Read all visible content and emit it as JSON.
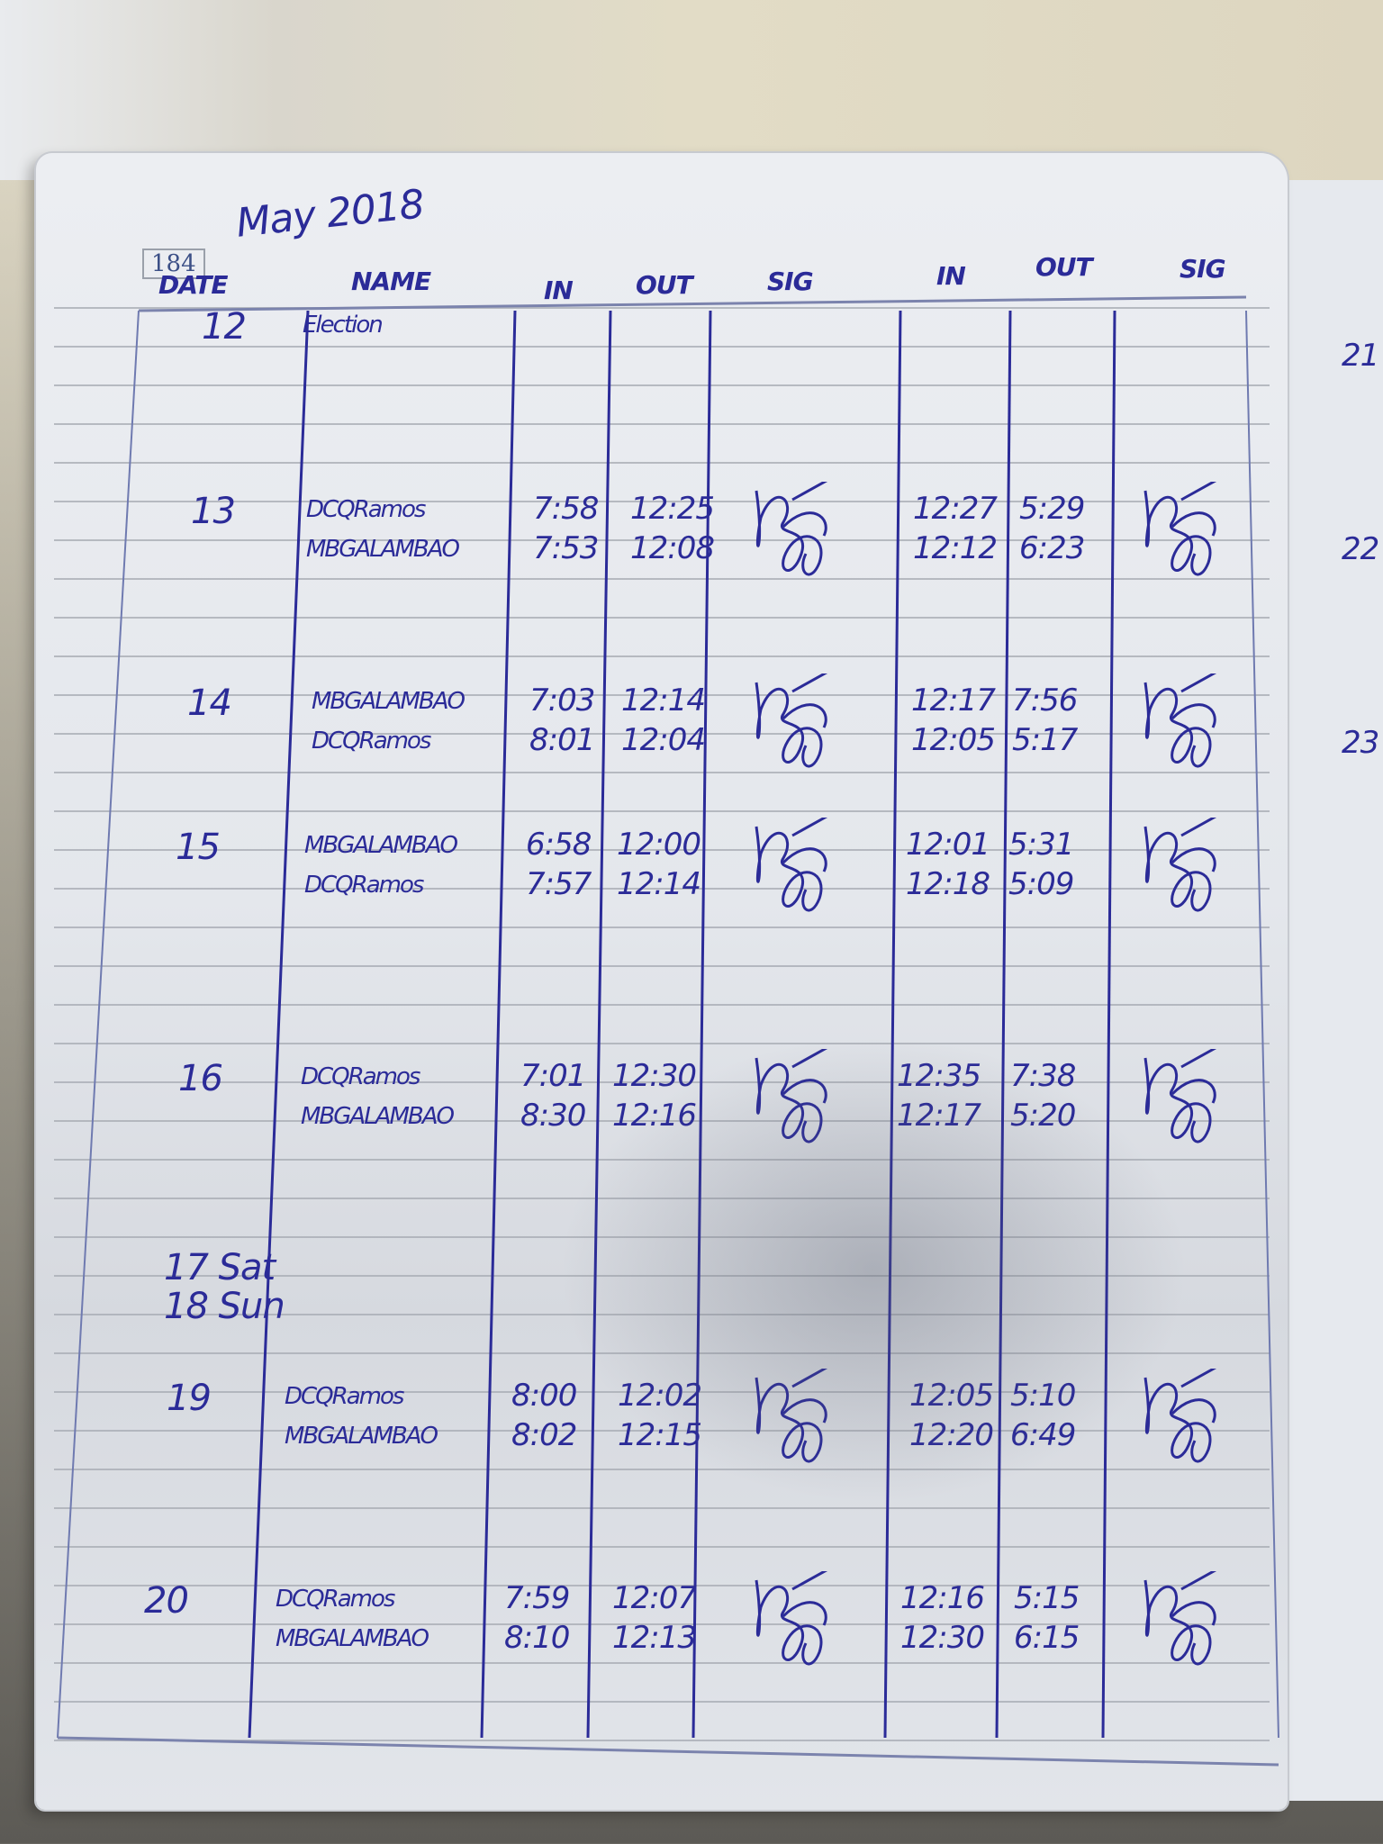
{
  "page": {
    "title": "May 2018",
    "page_number": "184",
    "ink_color": "#2b2b98",
    "headers": [
      "DATE",
      "NAME",
      "IN",
      "OUT",
      "SIG",
      "IN",
      "OUT",
      "SIG"
    ]
  },
  "rows": [
    {
      "date": "12",
      "names": [
        "Election"
      ],
      "in_am": [],
      "out_am": [],
      "in_pm": [],
      "out_pm": [],
      "signed": false
    },
    {
      "date": "13",
      "names": [
        "DCQRamos",
        "MBGALAMBAO"
      ],
      "in_am": [
        "7:58",
        "7:53"
      ],
      "out_am": [
        "12:25",
        "12:08"
      ],
      "in_pm": [
        "12:27",
        "12:12"
      ],
      "out_pm": [
        "5:29",
        "6:23"
      ],
      "signed": true
    },
    {
      "date": "14",
      "names": [
        "MBGALAMBAO",
        "DCQRamos"
      ],
      "in_am": [
        "7:03",
        "8:01"
      ],
      "out_am": [
        "12:14",
        "12:04"
      ],
      "in_pm": [
        "12:17",
        "12:05"
      ],
      "out_pm": [
        "7:56",
        "5:17"
      ],
      "signed": true
    },
    {
      "date": "15",
      "names": [
        "MBGALAMBAO",
        "DCQRamos"
      ],
      "in_am": [
        "6:58",
        "7:57"
      ],
      "out_am": [
        "12:00",
        "12:14"
      ],
      "in_pm": [
        "12:01",
        "12:18"
      ],
      "out_pm": [
        "5:31",
        "5:09"
      ],
      "signed": true
    },
    {
      "date": "16",
      "names": [
        "DCQRamos",
        "MBGALAMBAO"
      ],
      "in_am": [
        "7:01",
        "8:30"
      ],
      "out_am": [
        "12:30",
        "12:16"
      ],
      "in_pm": [
        "12:35",
        "12:17"
      ],
      "out_pm": [
        "7:38",
        "5:20"
      ],
      "signed": true
    },
    {
      "date": "17 Sat",
      "names": [],
      "in_am": [],
      "out_am": [],
      "in_pm": [],
      "out_pm": [],
      "signed": false
    },
    {
      "date": "18 Sun",
      "names": [],
      "in_am": [],
      "out_am": [],
      "in_pm": [],
      "out_pm": [],
      "signed": false
    },
    {
      "date": "19",
      "names": [
        "DCQRamos",
        "MBGALAMBAO"
      ],
      "in_am": [
        "8:00",
        "8:02"
      ],
      "out_am": [
        "12:02",
        "12:15"
      ],
      "in_pm": [
        "12:05",
        "12:20"
      ],
      "out_pm": [
        "5:10",
        "6:49"
      ],
      "signed": true
    },
    {
      "date": "20",
      "names": [
        "DCQRamos",
        "MBGALAMBAO"
      ],
      "in_am": [
        "7:59",
        "8:10"
      ],
      "out_am": [
        "12:07",
        "12:13"
      ],
      "in_pm": [
        "12:16",
        "12:30"
      ],
      "out_pm": [
        "5:15",
        "6:15"
      ],
      "signed": true
    }
  ],
  "next_page_dates": [
    "21",
    "22",
    "23"
  ]
}
